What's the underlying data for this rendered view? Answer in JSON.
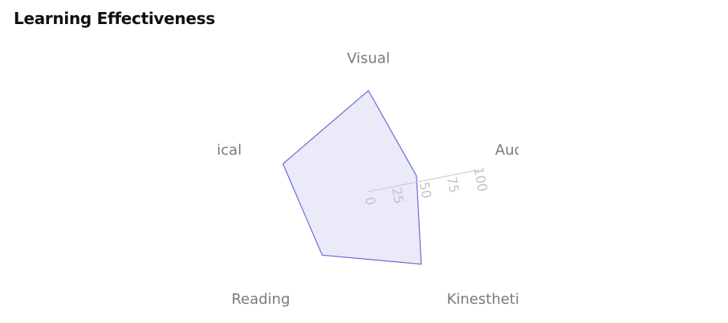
{
  "chart_data": {
    "type": "radar",
    "title": "Learning Effectiveness",
    "axes": [
      "Visual",
      "Auditory",
      "Kinesthetic",
      "Reading",
      "Analytical"
    ],
    "series": [
      {
        "values": [
          90,
          45,
          80,
          70,
          80
        ]
      }
    ],
    "rlim": [
      0,
      100
    ],
    "radial_ticks": [
      "0",
      "25",
      "50",
      "75",
      "100"
    ],
    "grid": false,
    "legend": false,
    "colors": {
      "series_fill": "#e9e9f8",
      "series_stroke": "#6b6bd8",
      "radial_axis": "#c8c8c8"
    }
  }
}
